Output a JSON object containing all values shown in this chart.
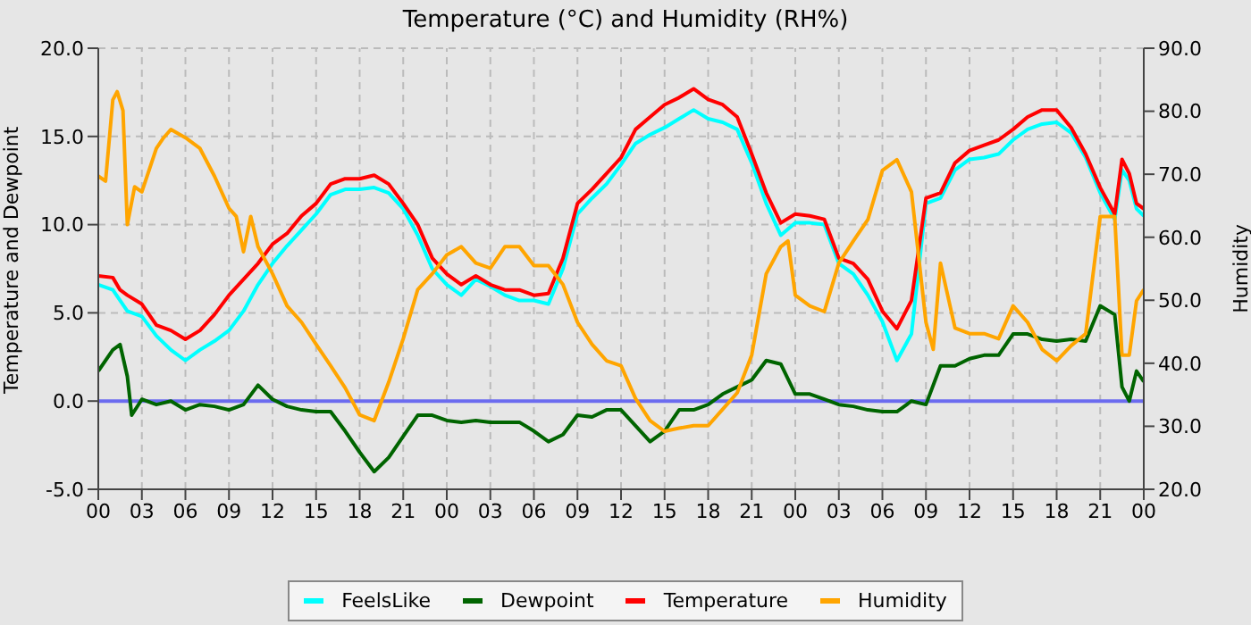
{
  "chart_data": {
    "type": "line",
    "title": "Temperature (°C) and Humidity (RH%)",
    "ylabel": "Temperature and Dewpoint",
    "y2label": "Humidity",
    "xlim": [
      0,
      72
    ],
    "xticks": [
      {
        "value": 0,
        "label": "00"
      },
      {
        "value": 3,
        "label": "03"
      },
      {
        "value": 6,
        "label": "06"
      },
      {
        "value": 9,
        "label": "09"
      },
      {
        "value": 12,
        "label": "12"
      },
      {
        "value": 15,
        "label": "15"
      },
      {
        "value": 18,
        "label": "18"
      },
      {
        "value": 21,
        "label": "21"
      },
      {
        "value": 24,
        "label": "00"
      },
      {
        "value": 27,
        "label": "03"
      },
      {
        "value": 30,
        "label": "06"
      },
      {
        "value": 33,
        "label": "09"
      },
      {
        "value": 36,
        "label": "12"
      },
      {
        "value": 39,
        "label": "15"
      },
      {
        "value": 42,
        "label": "18"
      },
      {
        "value": 45,
        "label": "21"
      },
      {
        "value": 48,
        "label": "00"
      },
      {
        "value": 51,
        "label": "03"
      },
      {
        "value": 54,
        "label": "06"
      },
      {
        "value": 57,
        "label": "09"
      },
      {
        "value": 60,
        "label": "12"
      },
      {
        "value": 63,
        "label": "15"
      },
      {
        "value": 66,
        "label": "18"
      },
      {
        "value": 69,
        "label": "21"
      },
      {
        "value": 72,
        "label": "00"
      }
    ],
    "ylim": [
      -5,
      20
    ],
    "yticks": [
      {
        "value": -5,
        "label": "-5.0"
      },
      {
        "value": 0,
        "label": "0.0"
      },
      {
        "value": 5,
        "label": "5.0"
      },
      {
        "value": 10,
        "label": "10.0"
      },
      {
        "value": 15,
        "label": "15.0"
      },
      {
        "value": 20,
        "label": "20.0"
      }
    ],
    "y2lim": [
      20,
      90
    ],
    "y2ticks": [
      {
        "value": 20,
        "label": "20.0"
      },
      {
        "value": 30,
        "label": "30.0"
      },
      {
        "value": 40,
        "label": "40.0"
      },
      {
        "value": 50,
        "label": "50.0"
      },
      {
        "value": 60,
        "label": "60.0"
      },
      {
        "value": 70,
        "label": "70.0"
      },
      {
        "value": 80,
        "label": "80.0"
      },
      {
        "value": 90,
        "label": "90.0"
      }
    ],
    "grid": true,
    "legend": "bottom",
    "ref_lines": [
      {
        "axis": "y",
        "value": 0,
        "color": "#6b6bef"
      }
    ],
    "series": [
      {
        "name": "FeelsLike",
        "color": "#00ffff",
        "x": [
          0,
          1,
          2,
          3,
          4,
          5,
          6,
          7,
          8,
          9,
          10,
          11,
          12,
          13,
          14,
          15,
          16,
          17,
          18,
          19,
          20,
          21,
          22,
          23,
          24,
          25,
          26,
          27,
          28,
          29,
          30,
          31,
          32,
          33,
          34,
          35,
          36,
          37,
          38,
          39,
          40,
          41,
          42,
          43,
          44,
          45,
          46,
          47,
          48,
          49,
          50,
          51,
          52,
          53,
          54,
          55,
          56,
          57,
          58,
          59,
          60,
          61,
          62,
          63,
          64,
          65,
          66,
          67,
          68,
          69,
          70,
          70.5,
          71,
          71.5,
          72
        ],
        "values": [
          6.6,
          6.3,
          5.1,
          4.8,
          3.7,
          2.9,
          2.3,
          2.9,
          3.4,
          4.0,
          5.1,
          6.6,
          7.8,
          8.8,
          9.7,
          10.6,
          11.7,
          12.0,
          12.0,
          12.1,
          11.8,
          10.9,
          9.4,
          7.5,
          6.6,
          6.0,
          6.9,
          6.5,
          6.0,
          5.7,
          5.7,
          5.5,
          7.5,
          10.6,
          11.5,
          12.3,
          13.4,
          14.6,
          15.1,
          15.5,
          16.0,
          16.5,
          16.0,
          15.8,
          15.4,
          13.5,
          11.2,
          9.4,
          10.1,
          10.1,
          10.0,
          7.8,
          7.2,
          6.0,
          4.5,
          2.3,
          3.8,
          11.2,
          11.5,
          13.1,
          13.7,
          13.8,
          14.0,
          14.8,
          15.4,
          15.7,
          15.8,
          15.2,
          13.8,
          11.8,
          10.3,
          13.1,
          12.5,
          10.9,
          10.5
        ]
      },
      {
        "name": "Dewpoint",
        "color": "#006400",
        "x": [
          0,
          1,
          1.5,
          2,
          2.3,
          3,
          4,
          5,
          6,
          7,
          8,
          9,
          10,
          11,
          12,
          13,
          14,
          15,
          16,
          17,
          18,
          19,
          20,
          21,
          22,
          23,
          24,
          25,
          26,
          27,
          28,
          29,
          30,
          31,
          32,
          33,
          34,
          35,
          36,
          37,
          38,
          39,
          40,
          41,
          42,
          43,
          44,
          45,
          46,
          47,
          48,
          49,
          50,
          51,
          52,
          53,
          54,
          55,
          56,
          57,
          58,
          59,
          60,
          61,
          62,
          63,
          64,
          65,
          66,
          67,
          68,
          69,
          70,
          70.5,
          71,
          71.5,
          72
        ],
        "values": [
          1.7,
          2.9,
          3.2,
          1.4,
          -0.8,
          0.1,
          -0.2,
          0.0,
          -0.5,
          -0.2,
          -0.3,
          -0.5,
          -0.2,
          0.9,
          0.1,
          -0.3,
          -0.5,
          -0.6,
          -0.6,
          -1.7,
          -2.9,
          -4.0,
          -3.2,
          -2.0,
          -0.8,
          -0.8,
          -1.1,
          -1.2,
          -1.1,
          -1.2,
          -1.2,
          -1.2,
          -1.7,
          -2.3,
          -1.9,
          -0.8,
          -0.9,
          -0.5,
          -0.5,
          -1.4,
          -2.3,
          -1.7,
          -0.5,
          -0.5,
          -0.2,
          0.4,
          0.8,
          1.2,
          2.3,
          2.1,
          0.4,
          0.4,
          0.1,
          -0.2,
          -0.3,
          -0.5,
          -0.6,
          -0.6,
          0.0,
          -0.2,
          2.0,
          2.0,
          2.4,
          2.6,
          2.6,
          3.8,
          3.8,
          3.5,
          3.4,
          3.5,
          3.4,
          5.4,
          4.9,
          0.8,
          0.0,
          1.7,
          1.1
        ]
      },
      {
        "name": "Temperature",
        "color": "#ff0000",
        "x": [
          0,
          1,
          1.5,
          2,
          3,
          4,
          5,
          6,
          7,
          8,
          9,
          10,
          11,
          12,
          13,
          14,
          15,
          16,
          17,
          18,
          19,
          20,
          21,
          22,
          23,
          24,
          25,
          26,
          27,
          28,
          29,
          30,
          31,
          32,
          33,
          34,
          35,
          36,
          37,
          38,
          39,
          40,
          41,
          42,
          43,
          44,
          45,
          46,
          47,
          48,
          49,
          50,
          51,
          52,
          53,
          54,
          55,
          56,
          57,
          58,
          59,
          60,
          61,
          62,
          63,
          64,
          65,
          66,
          67,
          68,
          69,
          70,
          70.5,
          71,
          71.5,
          72
        ],
        "values": [
          7.1,
          7.0,
          6.3,
          6.0,
          5.5,
          4.3,
          4.0,
          3.5,
          4.0,
          4.9,
          6.0,
          6.9,
          7.8,
          8.9,
          9.5,
          10.5,
          11.2,
          12.3,
          12.6,
          12.6,
          12.8,
          12.3,
          11.2,
          10.0,
          8.1,
          7.2,
          6.6,
          7.1,
          6.6,
          6.3,
          6.3,
          6.0,
          6.1,
          8.1,
          11.2,
          12.0,
          12.9,
          13.8,
          15.4,
          16.1,
          16.8,
          17.2,
          17.7,
          17.1,
          16.8,
          16.1,
          14.0,
          11.8,
          10.1,
          10.6,
          10.5,
          10.3,
          8.1,
          7.8,
          6.9,
          5.1,
          4.1,
          5.7,
          11.5,
          11.8,
          13.5,
          14.2,
          14.5,
          14.8,
          15.4,
          16.1,
          16.5,
          16.5,
          15.5,
          14.0,
          12.1,
          10.6,
          13.7,
          12.9,
          11.2,
          10.9
        ]
      },
      {
        "name": "Humidity",
        "color": "#ffa500",
        "axis": "y2",
        "x": [
          0,
          0.5,
          1,
          1.3,
          1.7,
          2,
          2.5,
          3,
          4,
          4.5,
          5,
          6,
          7,
          8,
          9,
          9.5,
          10,
          10.5,
          11,
          12,
          13,
          14,
          15,
          16,
          17,
          18,
          19,
          20,
          21,
          22,
          23,
          24,
          25,
          26,
          27,
          28,
          29,
          30,
          31,
          32,
          33,
          34,
          35,
          36,
          37,
          38,
          39,
          40,
          41,
          42,
          43,
          44,
          45,
          46,
          47,
          47.5,
          48,
          49,
          50,
          51,
          52,
          53,
          54,
          55,
          56,
          57,
          57.5,
          58,
          59,
          60,
          61,
          62,
          63,
          64,
          65,
          66,
          67,
          68,
          69,
          70,
          70.5,
          71,
          71.5,
          72
        ],
        "values": [
          69.7,
          68.9,
          81.8,
          83.1,
          80.1,
          62.0,
          68.0,
          67.2,
          74.1,
          75.8,
          77.1,
          75.8,
          74.1,
          69.7,
          64.6,
          63.3,
          57.7,
          63.3,
          58.5,
          54.2,
          49.1,
          46.5,
          43.0,
          39.6,
          36.1,
          31.8,
          30.9,
          37.0,
          43.9,
          51.7,
          54.2,
          57.2,
          58.5,
          55.9,
          55.1,
          58.5,
          58.5,
          55.5,
          55.5,
          52.5,
          46.5,
          43.0,
          40.4,
          39.6,
          34.4,
          30.9,
          29.2,
          29.7,
          30.1,
          30.1,
          32.7,
          35.3,
          41.3,
          54.2,
          58.5,
          59.4,
          50.8,
          49.1,
          48.2,
          55.9,
          59.4,
          62.8,
          70.6,
          72.3,
          67.2,
          46.5,
          42.2,
          55.9,
          45.6,
          44.7,
          44.7,
          43.9,
          49.1,
          46.5,
          42.2,
          40.4,
          42.8,
          44.7,
          63.3,
          63.3,
          41.3,
          41.3,
          49.9,
          51.7
        ]
      }
    ]
  }
}
